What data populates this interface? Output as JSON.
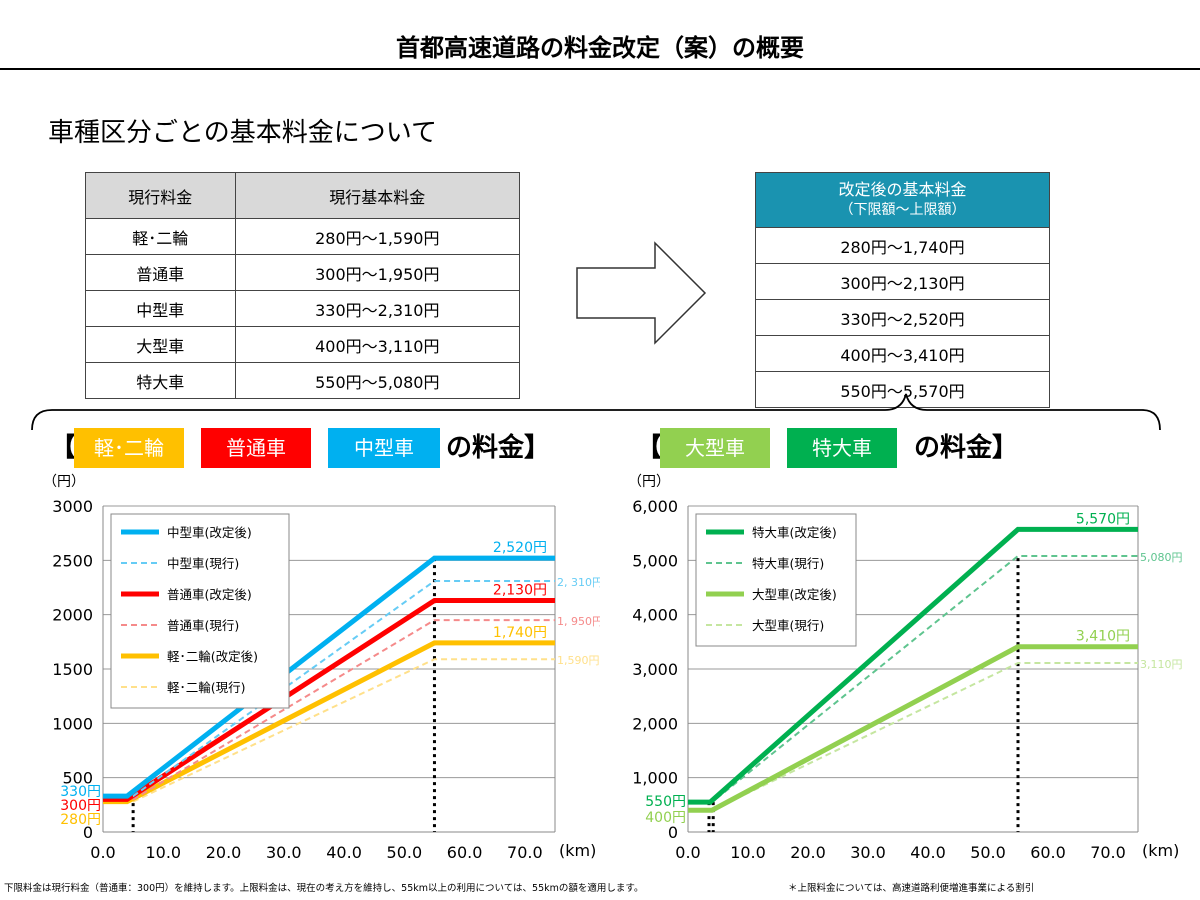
{
  "title": "首都高速道路の料金改定（案）の概要",
  "subtitle": "車種区分ごとの基本料金について",
  "current_table": {
    "headers": [
      "現行料金",
      "現行基本料金"
    ],
    "rows": [
      [
        "軽･二輪",
        "280円～1,590円"
      ],
      [
        "普通車",
        "300円～1,950円"
      ],
      [
        "中型車",
        "330円～2,310円"
      ],
      [
        "大型車",
        "400円～3,110円"
      ],
      [
        "特大車",
        "550円～5,080円"
      ]
    ]
  },
  "new_table": {
    "header": "改定後の基本料金",
    "subheader": "（下限額～上限額）",
    "rows": [
      "280円～1,740円",
      "300円～2,130円",
      "330円～2,520円",
      "400円～3,410円",
      "550円～5,570円"
    ]
  },
  "left_heading": {
    "open": "【",
    "tags": [
      "軽･二輪",
      "普通車",
      "中型車"
    ],
    "tag_colors": [
      "#ffc000",
      "#ff0000",
      "#00b0f0"
    ],
    "suffix": "の料金】"
  },
  "right_heading": {
    "open": "【",
    "tags": [
      "大型車",
      "特大車"
    ],
    "tag_colors": [
      "#92d050",
      "#00b050"
    ],
    "suffix": "の料金】"
  },
  "chart_data": [
    {
      "type": "line",
      "ylabel": "（円）",
      "xlabel": "(km)",
      "xlim": [
        0,
        75
      ],
      "ylim": [
        0,
        3000
      ],
      "xticks": [
        "0.0",
        "10.0",
        "20.0",
        "30.0",
        "40.0",
        "50.0",
        "60.0",
        "70.0"
      ],
      "yticks": [
        "0",
        "500",
        "1000",
        "1500",
        "2000",
        "2500",
        "3000"
      ],
      "ytick_values": [
        0,
        500,
        1000,
        1500,
        2000,
        2500,
        3000
      ],
      "grid": true,
      "legend": "top-left",
      "vlines": [
        5,
        55
      ],
      "series": [
        {
          "name": "中型車(改定後)",
          "color": "#00b0f0",
          "dashed": false,
          "points": [
            [
              0,
              330
            ],
            [
              4,
              330
            ],
            [
              55,
              2520
            ],
            [
              75,
              2520
            ]
          ],
          "end_label": "2,520円",
          "start_label": "330円"
        },
        {
          "name": "中型車(現行)",
          "color": "#66ccf5",
          "dashed": true,
          "points": [
            [
              0,
              330
            ],
            [
              5,
              330
            ],
            [
              55,
              2310
            ],
            [
              75,
              2310
            ]
          ],
          "end_label": "2, 310円"
        },
        {
          "name": "普通車(改定後)",
          "color": "#ff0000",
          "dashed": false,
          "points": [
            [
              0,
              300
            ],
            [
              4,
              300
            ],
            [
              55,
              2130
            ],
            [
              75,
              2130
            ]
          ],
          "end_label": "2,130円",
          "start_label": "300円"
        },
        {
          "name": "普通車(現行)",
          "color": "#f58a8a",
          "dashed": true,
          "points": [
            [
              0,
              300
            ],
            [
              5,
              300
            ],
            [
              55,
              1950
            ],
            [
              75,
              1950
            ]
          ],
          "end_label": "1, 950円"
        },
        {
          "name": "軽･二輪(改定後)",
          "color": "#ffc000",
          "dashed": false,
          "points": [
            [
              0,
              280
            ],
            [
              4,
              280
            ],
            [
              55,
              1740
            ],
            [
              75,
              1740
            ]
          ],
          "end_label": "1,740円",
          "start_label": "280円"
        },
        {
          "name": "軽･二輪(現行)",
          "color": "#ffe08a",
          "dashed": true,
          "points": [
            [
              0,
              280
            ],
            [
              5,
              280
            ],
            [
              55,
              1590
            ],
            [
              75,
              1590
            ]
          ],
          "end_label": "1,590円"
        }
      ]
    },
    {
      "type": "line",
      "ylabel": "（円）",
      "xlabel": "(km)",
      "xlim": [
        0,
        75
      ],
      "ylim": [
        0,
        6000
      ],
      "xticks": [
        "0.0",
        "10.0",
        "20.0",
        "30.0",
        "40.0",
        "50.0",
        "60.0",
        "70.0"
      ],
      "yticks": [
        "0",
        "1,000",
        "2,000",
        "3,000",
        "4,000",
        "5,000",
        "6,000"
      ],
      "ytick_values": [
        0,
        1000,
        2000,
        3000,
        4000,
        5000,
        6000
      ],
      "grid": true,
      "legend": "top-left",
      "vlines": [
        3.5,
        4.2,
        55
      ],
      "series": [
        {
          "name": "特大車(改定後)",
          "color": "#00b050",
          "dashed": false,
          "points": [
            [
              0,
              550
            ],
            [
              3.7,
              550
            ],
            [
              55,
              5570
            ],
            [
              75,
              5570
            ]
          ],
          "end_label": "5,570円",
          "start_label": "550円"
        },
        {
          "name": "特大車(現行)",
          "color": "#5fc48f",
          "dashed": true,
          "points": [
            [
              0,
              550
            ],
            [
              4,
              550
            ],
            [
              55,
              5080
            ],
            [
              75,
              5080
            ]
          ],
          "end_label": "5,080円"
        },
        {
          "name": "大型車(改定後)",
          "color": "#92d050",
          "dashed": false,
          "points": [
            [
              0,
              400
            ],
            [
              4,
              400
            ],
            [
              55,
              3410
            ],
            [
              75,
              3410
            ]
          ],
          "end_label": "3,410円",
          "start_label": "400円"
        },
        {
          "name": "大型車(現行)",
          "color": "#c5e6a0",
          "dashed": true,
          "points": [
            [
              0,
              400
            ],
            [
              4,
              400
            ],
            [
              55,
              3110
            ],
            [
              75,
              3110
            ]
          ],
          "end_label": "3,110円"
        }
      ]
    }
  ],
  "footnote_left": "下限料金は現行料金（普通車：300円）を維持します。上限料金は、現在の考え方を維持し、55km以上の利用については、55kmの額を適用します。",
  "footnote_right": "＊上限料金については、高速道路利便増進事業による割引"
}
